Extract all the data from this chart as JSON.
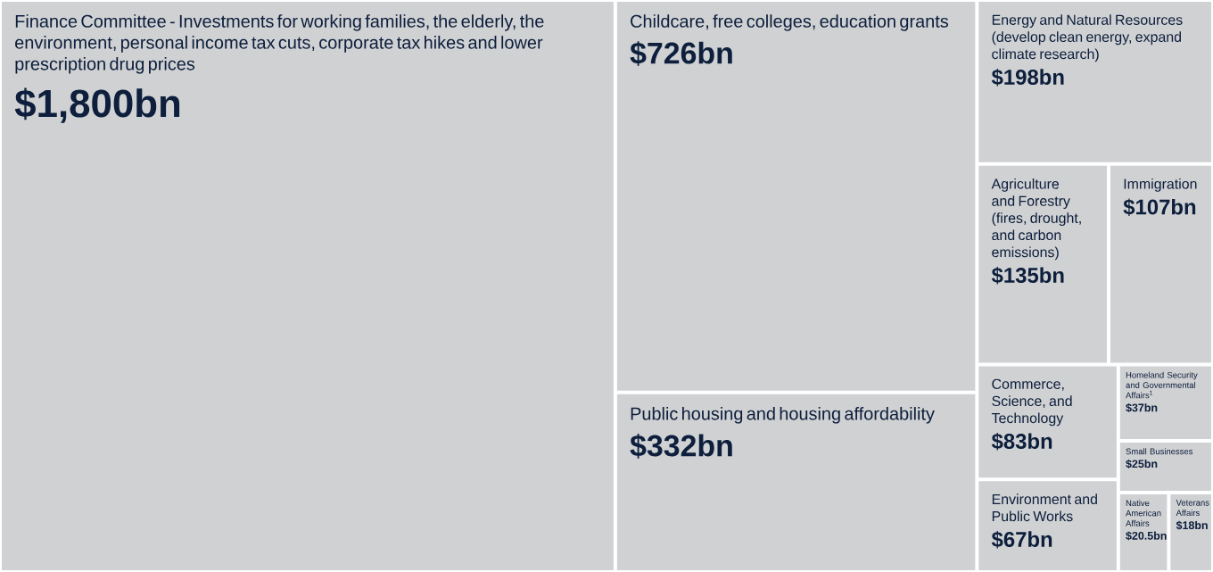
{
  "chart_data": {
    "type": "other",
    "color": "#d0d1d3",
    "categories": [
      "Finance Committee - Investments for working families, the elderly, the environment, personal income tax cuts, corporate tax hikes and lower prescription drug prices",
      "Childcare, free colleges, education grants",
      "Public housing and housing affordability",
      "Energy and Natural Resources (develop clean energy, expand climate research)",
      "Agriculture and Forestry (fires, drought, and carbon emissions)",
      "Immigration",
      "Commerce, Science, and Technology",
      "Environment and Public Works",
      "Homeland Security and Governmental Affairs$^{1}$",
      "Small Businesses",
      "Native American Affairs",
      "Veterans Affairs"
    ],
    "values": [
      1800,
      726,
      332,
      198,
      135,
      107,
      83,
      67,
      37,
      25,
      20.5,
      18
    ],
    "value_labels": [
      "$1,800bn",
      "$726bn",
      "$332bn",
      "$198bn",
      "$135bn",
      "$107bn",
      "$83bn",
      "$67bn",
      "$37bn",
      "$25bn",
      "$20.5bn",
      "$18bn"
    ]
  }
}
